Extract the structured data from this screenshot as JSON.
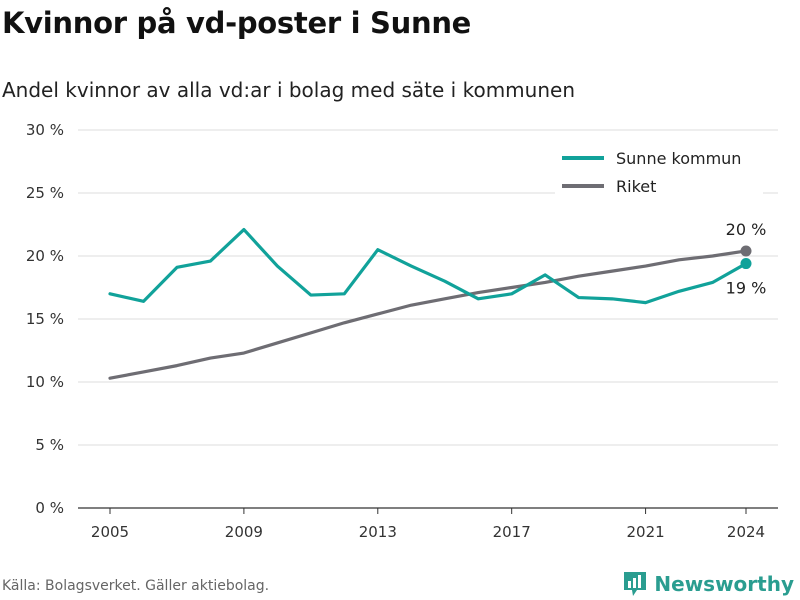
{
  "title": "Kvinnor på vd-poster i Sunne",
  "subtitle": "Andel kvinnor av alla vd:ar i bolag med säte i kommunen",
  "source": "Källa: Bolagsverket. Gäller aktiebolag.",
  "brand": "Newsworthy",
  "chart_data": {
    "type": "line",
    "x": [
      2005,
      2006,
      2007,
      2008,
      2009,
      2010,
      2011,
      2012,
      2013,
      2014,
      2015,
      2016,
      2017,
      2018,
      2019,
      2020,
      2021,
      2022,
      2023,
      2024
    ],
    "xticks": [
      "2005",
      "2009",
      "2013",
      "2017",
      "2021",
      "2024"
    ],
    "yticks": [
      "0 %",
      "5 %",
      "10 %",
      "15 %",
      "20 %",
      "25 %",
      "30 %"
    ],
    "ylim": [
      0,
      30
    ],
    "series": [
      {
        "name": "Sunne kommun",
        "color": "#11a29a",
        "values": [
          17.0,
          16.4,
          19.1,
          19.6,
          22.1,
          19.2,
          16.9,
          17.0,
          20.5,
          19.2,
          18.0,
          16.6,
          17.0,
          18.5,
          16.7,
          16.6,
          16.3,
          17.2,
          17.9,
          19.4
        ]
      },
      {
        "name": "Riket",
        "color": "#6e6d73",
        "values": [
          10.3,
          10.8,
          11.3,
          11.9,
          12.3,
          13.1,
          13.9,
          14.7,
          15.4,
          16.1,
          16.6,
          17.1,
          17.5,
          17.9,
          18.4,
          18.8,
          19.2,
          19.7,
          20.0,
          20.4
        ]
      }
    ],
    "end_labels": {
      "Sunne kommun": "19 %",
      "Riket": "20 %"
    },
    "grid": true,
    "legend": "top-right"
  }
}
